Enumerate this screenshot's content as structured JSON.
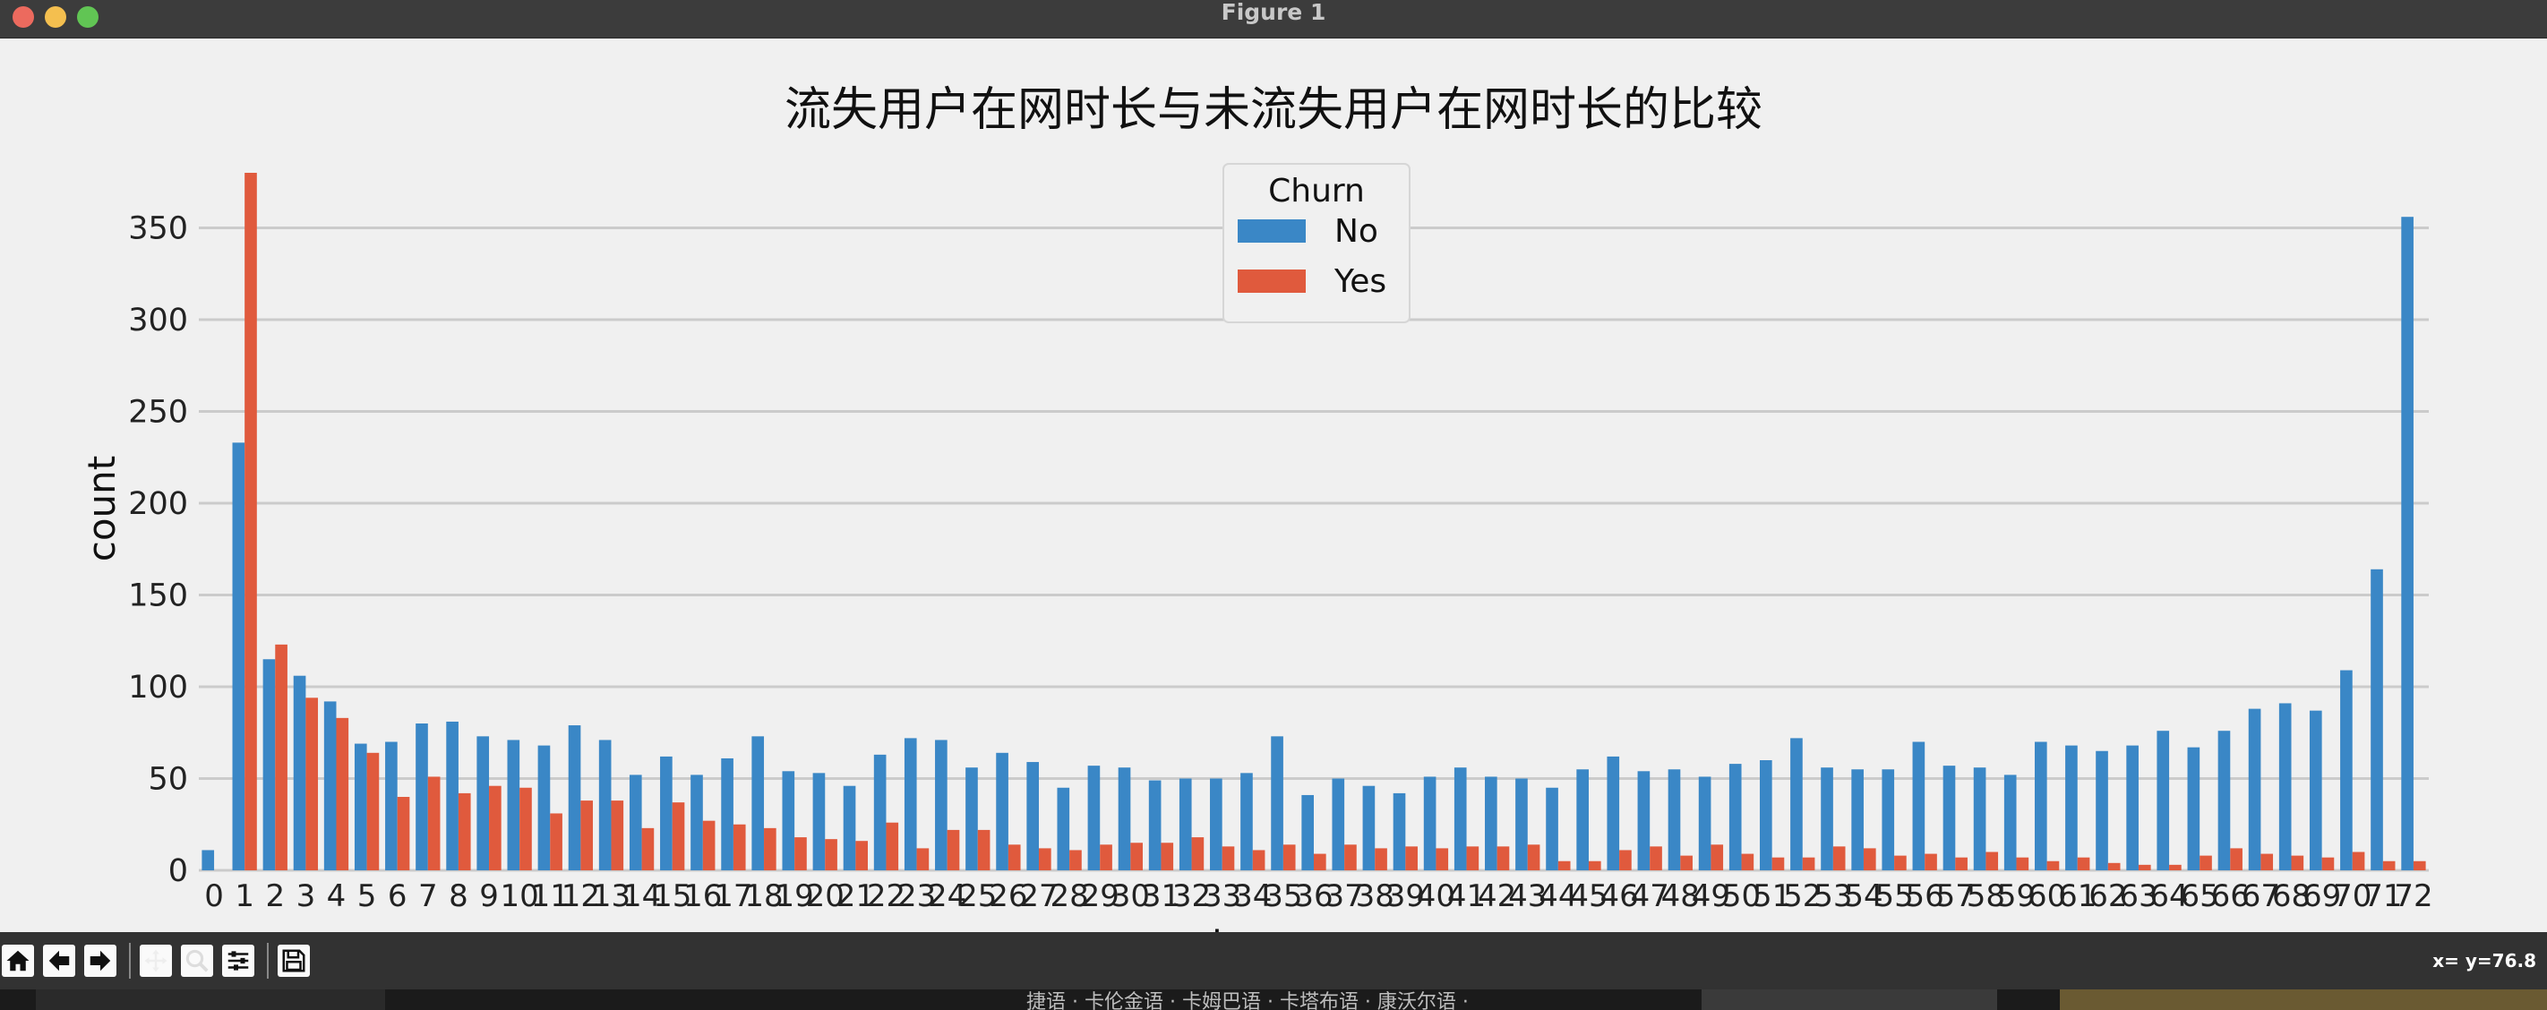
{
  "window": {
    "title": "Figure 1"
  },
  "toolbar": {
    "buttons": [
      {
        "name": "home-button",
        "icon": "home-icon"
      },
      {
        "name": "back-button",
        "icon": "arrow-left-icon"
      },
      {
        "name": "forward-button",
        "icon": "arrow-right-icon"
      },
      {
        "name": "pan-button",
        "icon": "pan-icon"
      },
      {
        "name": "zoom-button",
        "icon": "zoom-icon"
      },
      {
        "name": "configure-subplots-button",
        "icon": "sliders-icon"
      },
      {
        "name": "save-button",
        "icon": "save-icon"
      }
    ],
    "coords": "x= y=76.8"
  },
  "background_strip": {
    "text": "捷语 · 卡伦金语 · 卡姆巴语 · 卡塔布语 · 康沃尔语 ·"
  },
  "colors": {
    "no": "#3a87c6",
    "yes": "#e05a3d",
    "grid": "#cbcbcb",
    "background": "#f0f0f0"
  },
  "chart_data": {
    "type": "bar",
    "title": "流失用户在网时长与未流失用户在网时长的比较",
    "xlabel": "tenure",
    "ylabel": "count",
    "ylim": [
      0,
      380
    ],
    "yticks": [
      0,
      50,
      100,
      150,
      200,
      250,
      300,
      350
    ],
    "grid": "horizontal",
    "legend": {
      "title": "Churn",
      "placement": "top-center",
      "entries": [
        "No",
        "Yes"
      ]
    },
    "categories": [
      "0",
      "1",
      "2",
      "3",
      "4",
      "5",
      "6",
      "7",
      "8",
      "9",
      "10",
      "11",
      "12",
      "13",
      "14",
      "15",
      "16",
      "17",
      "18",
      "19",
      "20",
      "21",
      "22",
      "23",
      "24",
      "25",
      "26",
      "27",
      "28",
      "29",
      "30",
      "31",
      "32",
      "33",
      "34",
      "35",
      "36",
      "37",
      "38",
      "39",
      "40",
      "41",
      "42",
      "43",
      "44",
      "45",
      "46",
      "47",
      "48",
      "49",
      "50",
      "51",
      "52",
      "53",
      "54",
      "55",
      "56",
      "57",
      "58",
      "59",
      "60",
      "61",
      "62",
      "63",
      "64",
      "65",
      "66",
      "67",
      "68",
      "69",
      "70",
      "71",
      "72"
    ],
    "series": [
      {
        "name": "No",
        "values": [
          11,
          233,
          115,
          106,
          92,
          69,
          70,
          80,
          81,
          73,
          71,
          68,
          79,
          71,
          52,
          62,
          52,
          61,
          73,
          54,
          53,
          46,
          63,
          72,
          71,
          56,
          64,
          59,
          45,
          57,
          56,
          49,
          50,
          50,
          53,
          73,
          41,
          50,
          46,
          42,
          51,
          56,
          51,
          50,
          45,
          55,
          62,
          54,
          55,
          51,
          58,
          60,
          72,
          56,
          55,
          55,
          70,
          57,
          56,
          52,
          70,
          68,
          65,
          68,
          76,
          67,
          76,
          88,
          91,
          87,
          109,
          164,
          356
        ]
      },
      {
        "name": "Yes",
        "values": [
          0,
          380,
          123,
          94,
          83,
          64,
          40,
          51,
          42,
          46,
          45,
          31,
          38,
          38,
          23,
          37,
          27,
          25,
          23,
          18,
          17,
          16,
          26,
          12,
          22,
          22,
          14,
          12,
          11,
          14,
          15,
          15,
          18,
          13,
          11,
          14,
          9,
          14,
          12,
          13,
          12,
          13,
          13,
          14,
          5,
          5,
          11,
          13,
          8,
          14,
          9,
          7,
          7,
          13,
          12,
          8,
          9,
          7,
          10,
          7,
          5,
          7,
          4,
          3,
          3,
          8,
          12,
          9,
          8,
          7,
          10,
          5,
          5
        ]
      }
    ]
  }
}
